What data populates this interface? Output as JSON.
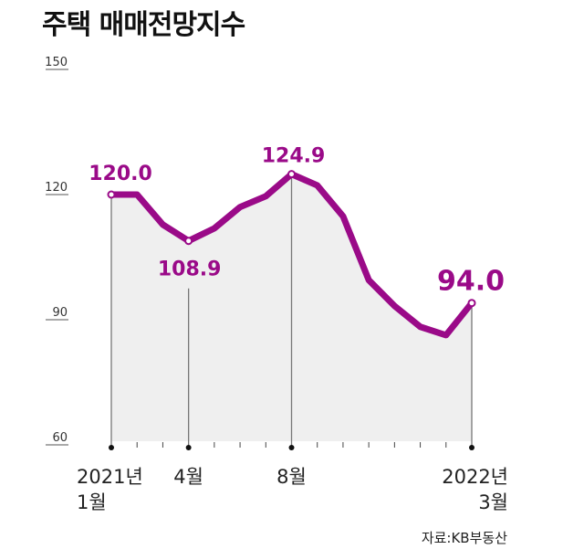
{
  "chart_data": {
    "type": "area",
    "title": "주택 매매전망지수",
    "x": [
      "2021-01",
      "2021-02",
      "2021-03",
      "2021-04",
      "2021-05",
      "2021-06",
      "2021-07",
      "2021-08",
      "2021-09",
      "2021-10",
      "2021-11",
      "2021-12",
      "2022-01",
      "2022-02",
      "2022-03"
    ],
    "values": [
      120.0,
      120.0,
      112.8,
      108.9,
      111.9,
      117.0,
      119.6,
      124.9,
      122.2,
      114.8,
      99.5,
      93.3,
      88.3,
      86.3,
      94.0
    ],
    "ylim": [
      60,
      150
    ],
    "yticks": [
      "150",
      "120",
      "90",
      "60"
    ],
    "x_labels": [
      {
        "index": 0,
        "line1": "2021년",
        "line2": "1월"
      },
      {
        "index": 3,
        "line1": "4월",
        "line2": ""
      },
      {
        "index": 7,
        "line1": "8월",
        "line2": ""
      },
      {
        "index": 14,
        "line1": "2022년",
        "line2": "3월"
      }
    ],
    "annotations": [
      {
        "index": 0,
        "text": "120.0"
      },
      {
        "index": 3,
        "text": "108.9"
      },
      {
        "index": 7,
        "text": "124.9"
      },
      {
        "index": 14,
        "text": "94.0"
      }
    ],
    "source": "자료:KB부동산",
    "grid": false,
    "legend": "none",
    "colors": {
      "line": "#9a0a88",
      "fill": "#efefef",
      "text": "#222222"
    }
  }
}
